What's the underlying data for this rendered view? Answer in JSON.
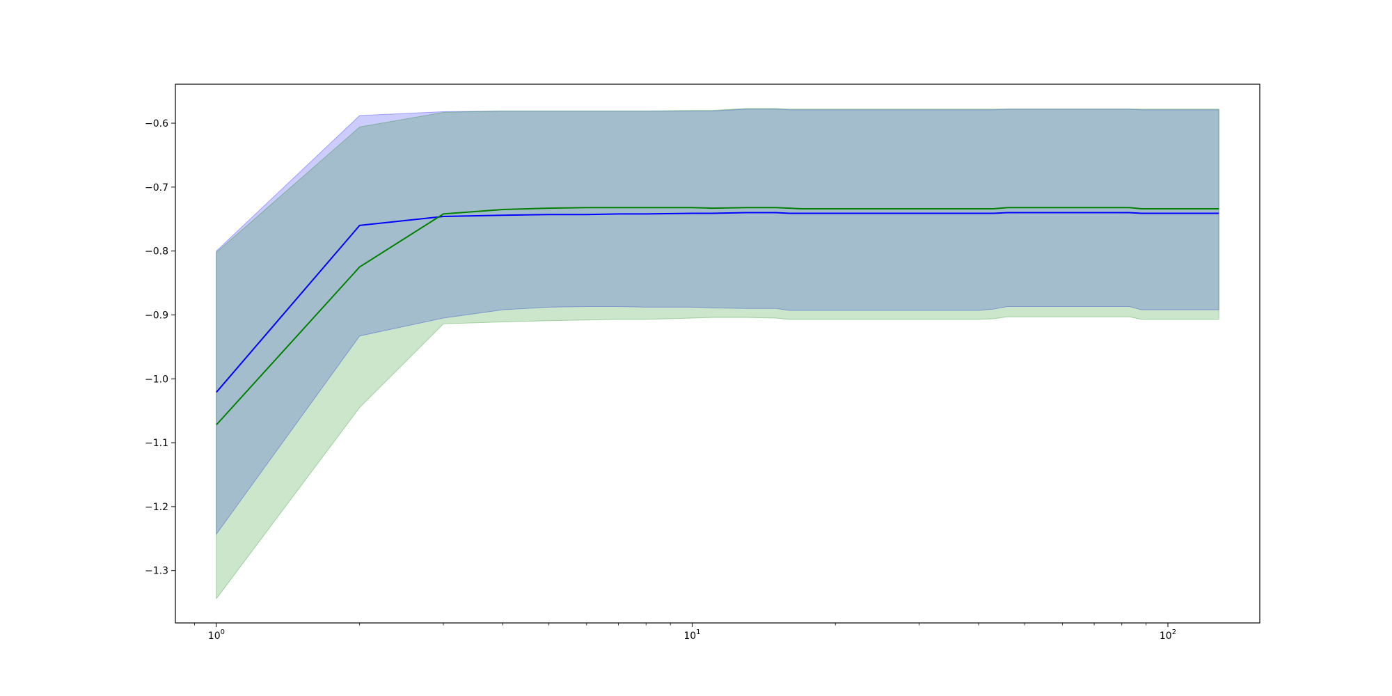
{
  "chart_data": {
    "type": "line",
    "title": "",
    "xlabel": "",
    "ylabel": "",
    "xscale": "log",
    "xlim": [
      0.82,
      156
    ],
    "ylim": [
      -1.382,
      -0.539
    ],
    "grid": false,
    "legend": "none",
    "x_ticks": [
      {
        "value": 1,
        "base": "10",
        "exp": "0"
      },
      {
        "value": 10,
        "base": "10",
        "exp": "1"
      },
      {
        "value": 100,
        "base": "10",
        "exp": "2"
      }
    ],
    "y_ticks": [
      {
        "value": -0.6,
        "label": "−0.6"
      },
      {
        "value": -0.7,
        "label": "−0.7"
      },
      {
        "value": -0.8,
        "label": "−0.8"
      },
      {
        "value": -0.9,
        "label": "−0.9"
      },
      {
        "value": -1.0,
        "label": "−1.0"
      },
      {
        "value": -1.1,
        "label": "−1.1"
      },
      {
        "value": -1.2,
        "label": "−1.2"
      },
      {
        "value": -1.3,
        "label": "−1.3"
      }
    ],
    "x": [
      1,
      2,
      3,
      4,
      5,
      6,
      7,
      8,
      10,
      11,
      13,
      15,
      16,
      17,
      20,
      25,
      30,
      40,
      43,
      46,
      50,
      60,
      70,
      80,
      83,
      88,
      100,
      128
    ],
    "series": [
      {
        "color": "#0000ff",
        "band_color": "#0000ff",
        "band_opacity": 0.2,
        "mean": [
          -1.021,
          -0.76,
          -0.746,
          -0.744,
          -0.743,
          -0.743,
          -0.742,
          -0.742,
          -0.741,
          -0.741,
          -0.74,
          -0.74,
          -0.741,
          -0.741,
          -0.741,
          -0.741,
          -0.741,
          -0.741,
          -0.741,
          -0.74,
          -0.74,
          -0.74,
          -0.74,
          -0.74,
          -0.74,
          -0.741,
          -0.741,
          -0.741
        ],
        "upper": [
          -0.8,
          -0.588,
          -0.582,
          -0.581,
          -0.581,
          -0.581,
          -0.581,
          -0.581,
          -0.581,
          -0.581,
          -0.578,
          -0.578,
          -0.579,
          -0.579,
          -0.579,
          -0.579,
          -0.579,
          -0.579,
          -0.579,
          -0.578,
          -0.578,
          -0.578,
          -0.578,
          -0.578,
          -0.578,
          -0.579,
          -0.579,
          -0.579
        ],
        "lower": [
          -1.243,
          -0.933,
          -0.905,
          -0.892,
          -0.888,
          -0.887,
          -0.887,
          -0.888,
          -0.888,
          -0.889,
          -0.89,
          -0.89,
          -0.893,
          -0.893,
          -0.893,
          -0.893,
          -0.893,
          -0.893,
          -0.891,
          -0.887,
          -0.887,
          -0.887,
          -0.887,
          -0.887,
          -0.887,
          -0.892,
          -0.892,
          -0.892
        ]
      },
      {
        "color": "#008000",
        "band_color": "#008000",
        "band_opacity": 0.2,
        "mean": [
          -1.072,
          -0.825,
          -0.742,
          -0.735,
          -0.733,
          -0.732,
          -0.732,
          -0.732,
          -0.732,
          -0.733,
          -0.732,
          -0.732,
          -0.733,
          -0.734,
          -0.734,
          -0.734,
          -0.734,
          -0.734,
          -0.734,
          -0.732,
          -0.732,
          -0.732,
          -0.732,
          -0.732,
          -0.732,
          -0.734,
          -0.734,
          -0.734
        ],
        "upper": [
          -0.802,
          -0.606,
          -0.583,
          -0.581,
          -0.581,
          -0.581,
          -0.581,
          -0.581,
          -0.58,
          -0.58,
          -0.577,
          -0.577,
          -0.578,
          -0.578,
          -0.578,
          -0.578,
          -0.578,
          -0.578,
          -0.578,
          -0.578,
          -0.578,
          -0.578,
          -0.578,
          -0.578,
          -0.578,
          -0.578,
          -0.578,
          -0.578
        ],
        "lower": [
          -1.344,
          -1.045,
          -0.914,
          -0.911,
          -0.909,
          -0.908,
          -0.907,
          -0.907,
          -0.905,
          -0.904,
          -0.904,
          -0.905,
          -0.907,
          -0.907,
          -0.907,
          -0.907,
          -0.907,
          -0.907,
          -0.906,
          -0.903,
          -0.903,
          -0.903,
          -0.903,
          -0.903,
          -0.903,
          -0.907,
          -0.907,
          -0.907
        ]
      }
    ]
  }
}
